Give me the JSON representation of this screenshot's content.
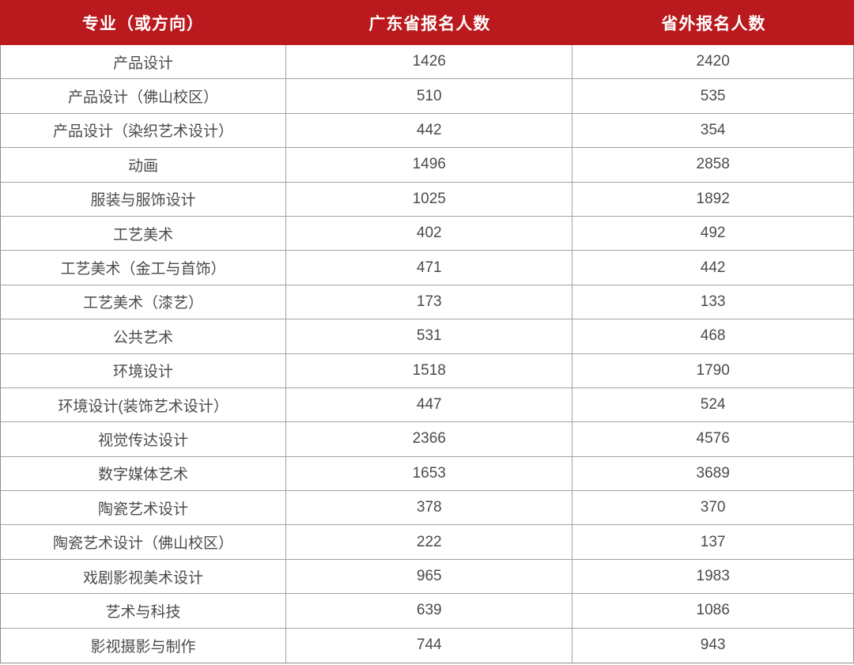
{
  "colors": {
    "header_bg": "#ba191d",
    "header_text": "#ffffff",
    "body_text": "#4b4b4b",
    "grid_line": "#a2a2a2",
    "outer_border": "#8f8f8f"
  },
  "chart_data": {
    "type": "table",
    "columns": [
      "专业（或方向）",
      "广东省报名人数",
      "省外报名人数"
    ],
    "rows": [
      [
        "产品设计",
        1426,
        2420
      ],
      [
        "产品设计（佛山校区）",
        510,
        535
      ],
      [
        "产品设计（染织艺术设计）",
        442,
        354
      ],
      [
        "动画",
        1496,
        2858
      ],
      [
        "服装与服饰设计",
        1025,
        1892
      ],
      [
        "工艺美术",
        402,
        492
      ],
      [
        "工艺美术（金工与首饰）",
        471,
        442
      ],
      [
        "工艺美术（漆艺）",
        173,
        133
      ],
      [
        "公共艺术",
        531,
        468
      ],
      [
        "环境设计",
        1518,
        1790
      ],
      [
        "环境设计(装饰艺术设计）",
        447,
        524
      ],
      [
        "视觉传达设计",
        2366,
        4576
      ],
      [
        "数字媒体艺术",
        1653,
        3689
      ],
      [
        "陶瓷艺术设计",
        378,
        370
      ],
      [
        "陶瓷艺术设计（佛山校区）",
        222,
        137
      ],
      [
        "戏剧影视美术设计",
        965,
        1983
      ],
      [
        "艺术与科技",
        639,
        1086
      ],
      [
        "影视摄影与制作",
        744,
        943
      ]
    ]
  }
}
